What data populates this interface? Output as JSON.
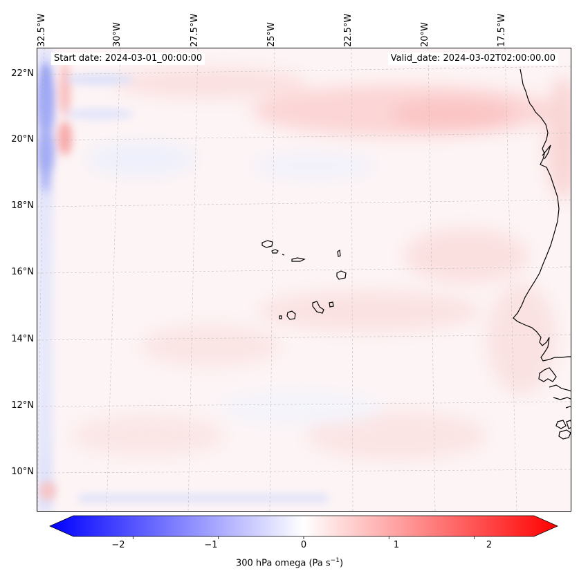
{
  "header": {
    "start_date": "Start date: 2024-03-01_00:00:00",
    "valid_date": "Valid_date: 2024-03-02T02:00:00.00"
  },
  "axes": {
    "longitudes": [
      "32.5°W",
      "30°W",
      "27.5°W",
      "25°W",
      "22.5°W",
      "20°W",
      "17.5°W"
    ],
    "latitudes": [
      "22°N",
      "20°N",
      "18°N",
      "16°N",
      "14°N",
      "12°N",
      "10°N"
    ]
  },
  "colorbar": {
    "label_prefix": "300 hPa omega (Pa s",
    "label_exp": "−1",
    "label_suffix": ")",
    "ticks": [
      "−2",
      "−1",
      "0",
      "1",
      "2"
    ],
    "min": -2.7,
    "max": 2.7,
    "low_color": "#0000ff",
    "mid_color": "#ffffff",
    "high_color": "#ff0000"
  },
  "chart_data": {
    "type": "heatmap",
    "variable": "300 hPa omega",
    "units": "Pa s^-1",
    "lon_range": [
      -33,
      -16.5
    ],
    "lat_range": [
      9,
      22.7
    ],
    "colormap": "bwr",
    "features": [
      {
        "name": "west-edge-ascent",
        "lon": -32.6,
        "lat": 21.2,
        "value": -1.6
      },
      {
        "name": "west-edge-ascent-2",
        "lon": -32.6,
        "lat": 19.8,
        "value": -1.3
      },
      {
        "name": "west-descent-band",
        "lon": -32.0,
        "lat": 20.0,
        "value": 0.9
      },
      {
        "name": "north-descent-band",
        "lon": -20.0,
        "lat": 20.8,
        "value": 0.7
      },
      {
        "name": "east-edge-descent",
        "lon": -16.5,
        "lat": 19.0,
        "value": 0.6
      },
      {
        "name": "south-edge-ascent",
        "lon": -26.0,
        "lat": 9.0,
        "value": -0.4
      }
    ]
  }
}
